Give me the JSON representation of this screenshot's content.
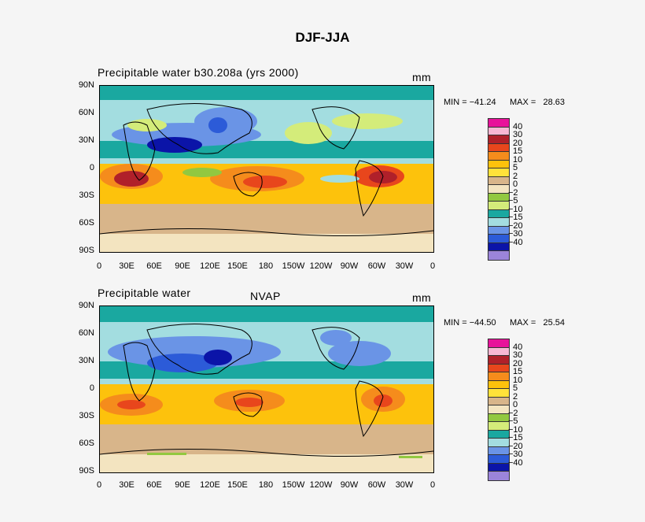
{
  "figure_title": "DJF-JJA",
  "panels": [
    {
      "title_left": "Precipitable water  b30.208a (yrs 2000)",
      "title_center": "",
      "units": "mm",
      "min_label": "MIN = −41.24",
      "max_label": "MAX =   28.63"
    },
    {
      "title_left": "Precipitable water",
      "title_center": "NVAP",
      "units": "mm",
      "min_label": "MIN = −44.50",
      "max_label": "MAX =   25.54"
    }
  ],
  "lat_ticks": [
    "90N",
    "60N",
    "30N",
    "0",
    "30S",
    "60S",
    "90S"
  ],
  "lon_ticks": [
    "0",
    "30E",
    "60E",
    "90E",
    "120E",
    "150E",
    "180",
    "150W",
    "120W",
    "90W",
    "60W",
    "30W",
    "0"
  ],
  "colorbar": {
    "levels": [
      "40",
      "30",
      "20",
      "15",
      "10",
      "5",
      "2",
      "0",
      "−2",
      "−5",
      "−10",
      "−15",
      "−20",
      "−30",
      "−40"
    ],
    "colors": [
      "#e8129a",
      "#f7b7d3",
      "#b0202a",
      "#e8461c",
      "#f58c1c",
      "#fdc20c",
      "#ffe23a",
      "#d8b58a",
      "#f3e4c0",
      "#92c840",
      "#d4ec7a",
      "#1aa8a0",
      "#a3dde0",
      "#6a94e6",
      "#2c5bd8",
      "#0b14a8",
      "#9b84da"
    ]
  },
  "colors": {
    "land_outline": "#000000",
    "background": "#f5f5f5"
  }
}
